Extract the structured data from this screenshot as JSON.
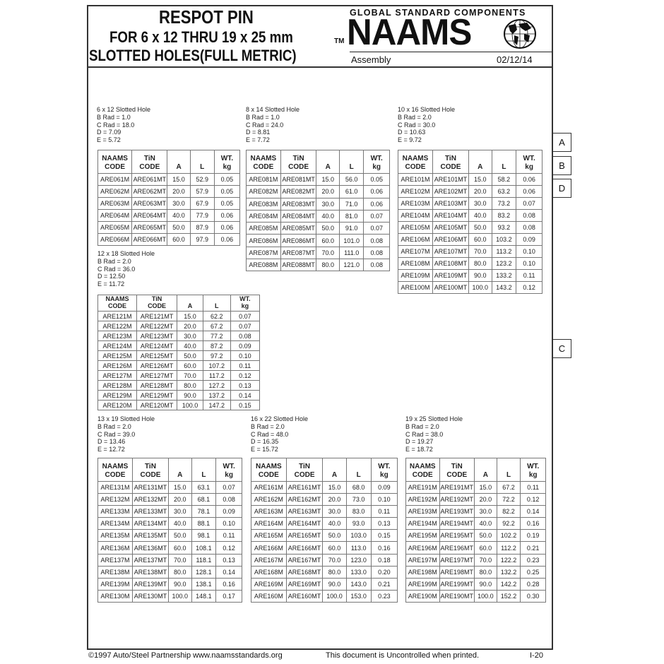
{
  "header": {
    "title_line1": "RESPOT PIN",
    "title_line2": "FOR 6 x 12 THRU 19 x 25 mm",
    "title_line3": "SLOTTED HOLES(FULL METRIC)",
    "tm": "TM",
    "tagline": "GLOBAL STANDARD COMPONENTS",
    "logo_text": "NAAMS",
    "category": "Assembly",
    "date": "02/12/14"
  },
  "columns": [
    "NAAMS CODE",
    "TiN CODE",
    "A",
    "L",
    "WT. kg"
  ],
  "groups": [
    {
      "title": "6 x 12 Slotted Hole",
      "b_rad": "B Rad = 1.0",
      "c_rad": "C Rad = 18.0",
      "d": "D = 7.09",
      "e": "E = 5.72",
      "rows": [
        [
          "ARE061M",
          "ARE061MT",
          "15.0",
          "52.9",
          "0.05"
        ],
        [
          "ARE062M",
          "ARE062MT",
          "20.0",
          "57.9",
          "0.05"
        ],
        [
          "ARE063M",
          "ARE063MT",
          "30.0",
          "67.9",
          "0.05"
        ],
        [
          "ARE064M",
          "ARE064MT",
          "40.0",
          "77.9",
          "0.06"
        ],
        [
          "ARE065M",
          "ARE065MT",
          "50.0",
          "87.9",
          "0.06"
        ],
        [
          "ARE066M",
          "ARE066MT",
          "60.0",
          "97.9",
          "0.06"
        ]
      ]
    },
    {
      "title": "8 x 14 Slotted Hole",
      "b_rad": "B Rad = 1.0",
      "c_rad": "C Rad = 24.0",
      "d": "D = 8.81",
      "e": "E = 7.72",
      "rows": [
        [
          "ARE081M",
          "ARE081MT",
          "15.0",
          "56.0",
          "0.05"
        ],
        [
          "ARE082M",
          "ARE082MT",
          "20.0",
          "61.0",
          "0.06"
        ],
        [
          "ARE083M",
          "ARE083MT",
          "30.0",
          "71.0",
          "0.06"
        ],
        [
          "ARE084M",
          "ARE084MT",
          "40.0",
          "81.0",
          "0.07"
        ],
        [
          "ARE085M",
          "ARE085MT",
          "50.0",
          "91.0",
          "0.07"
        ],
        [
          "ARE086M",
          "ARE086MT",
          "60.0",
          "101.0",
          "0.08"
        ],
        [
          "ARE087M",
          "ARE087MT",
          "70.0",
          "111.0",
          "0.08"
        ],
        [
          "ARE088M",
          "ARE088MT",
          "80.0",
          "121.0",
          "0.08"
        ]
      ]
    },
    {
      "title": "10 x 16 Slotted Hole",
      "b_rad": "B Rad = 2.0",
      "c_rad": "C Rad = 30.0",
      "d": "D = 10.63",
      "e": "E = 9.72",
      "rows": [
        [
          "ARE101M",
          "ARE101MT",
          "15.0",
          "58.2",
          "0.06"
        ],
        [
          "ARE102M",
          "ARE102MT",
          "20.0",
          "63.2",
          "0.06"
        ],
        [
          "ARE103M",
          "ARE103MT",
          "30.0",
          "73.2",
          "0.07"
        ],
        [
          "ARE104M",
          "ARE104MT",
          "40.0",
          "83.2",
          "0.08"
        ],
        [
          "ARE105M",
          "ARE105MT",
          "50.0",
          "93.2",
          "0.08"
        ],
        [
          "ARE106M",
          "ARE106MT",
          "60.0",
          "103.2",
          "0.09"
        ],
        [
          "ARE107M",
          "ARE107MT",
          "70.0",
          "113.2",
          "0.10"
        ],
        [
          "ARE108M",
          "ARE108MT",
          "80.0",
          "123.2",
          "0.10"
        ],
        [
          "ARE109M",
          "ARE109MT",
          "90.0",
          "133.2",
          "0.11"
        ],
        [
          "ARE100M",
          "ARE100MT",
          "100.0",
          "143.2",
          "0.12"
        ]
      ]
    },
    {
      "title": "12 x 18 Slotted Hole",
      "b_rad": "B Rad = 2.0",
      "c_rad": "C Rad = 36.0",
      "d": "D = 12.50",
      "e": "E = 11.72",
      "rows": [
        [
          "ARE121M",
          "ARE121MT",
          "15.0",
          "62.2",
          "0.07"
        ],
        [
          "ARE122M",
          "ARE122MT",
          "20.0",
          "67.2",
          "0.07"
        ],
        [
          "ARE123M",
          "ARE123MT",
          "30.0",
          "77.2",
          "0.08"
        ],
        [
          "ARE124M",
          "ARE124MT",
          "40.0",
          "87.2",
          "0.09"
        ],
        [
          "ARE125M",
          "ARE125MT",
          "50.0",
          "97.2",
          "0.10"
        ],
        [
          "ARE126M",
          "ARE126MT",
          "60.0",
          "107.2",
          "0.11"
        ],
        [
          "ARE127M",
          "ARE127MT",
          "70.0",
          "117.2",
          "0.12"
        ],
        [
          "ARE128M",
          "ARE128MT",
          "80.0",
          "127.2",
          "0.13"
        ],
        [
          "ARE129M",
          "ARE129MT",
          "90.0",
          "137.2",
          "0.14"
        ],
        [
          "ARE120M",
          "ARE120MT",
          "100.0",
          "147.2",
          "0.15"
        ]
      ]
    },
    {
      "title": "13 x 19 Slotted Hole",
      "b_rad": "B Rad = 2.0",
      "c_rad": "C Rad = 39.0",
      "d": "D = 13.46",
      "e": "E = 12.72",
      "rows": [
        [
          "ARE131M",
          "ARE131MT",
          "15.0",
          "63.1",
          "0.07"
        ],
        [
          "ARE132M",
          "ARE132MT",
          "20.0",
          "68.1",
          "0.08"
        ],
        [
          "ARE133M",
          "ARE133MT",
          "30.0",
          "78.1",
          "0.09"
        ],
        [
          "ARE134M",
          "ARE134MT",
          "40.0",
          "88.1",
          "0.10"
        ],
        [
          "ARE135M",
          "ARE135MT",
          "50.0",
          "98.1",
          "0.11"
        ],
        [
          "ARE136M",
          "ARE136MT",
          "60.0",
          "108.1",
          "0.12"
        ],
        [
          "ARE137M",
          "ARE137MT",
          "70.0",
          "118.1",
          "0.13"
        ],
        [
          "ARE138M",
          "ARE138MT",
          "80.0",
          "128.1",
          "0.14"
        ],
        [
          "ARE139M",
          "ARE139MT",
          "90.0",
          "138.1",
          "0.16"
        ],
        [
          "ARE130M",
          "ARE130MT",
          "100.0",
          "148.1",
          "0.17"
        ]
      ]
    },
    {
      "title": "16 x 22 Slotted Hole",
      "b_rad": "B Rad = 2.0",
      "c_rad": "C Rad = 48.0",
      "d": "D = 16.35",
      "e": "E = 15.72",
      "rows": [
        [
          "ARE161M",
          "ARE161MT",
          "15.0",
          "68.0",
          "0.09"
        ],
        [
          "ARE162M",
          "ARE162MT",
          "20.0",
          "73.0",
          "0.10"
        ],
        [
          "ARE163M",
          "ARE163MT",
          "30.0",
          "83.0",
          "0.11"
        ],
        [
          "ARE164M",
          "ARE164MT",
          "40.0",
          "93.0",
          "0.13"
        ],
        [
          "ARE165M",
          "ARE165MT",
          "50.0",
          "103.0",
          "0.15"
        ],
        [
          "ARE166M",
          "ARE166MT",
          "60.0",
          "113.0",
          "0.16"
        ],
        [
          "ARE167M",
          "ARE167MT",
          "70.0",
          "123.0",
          "0.18"
        ],
        [
          "ARE168M",
          "ARE168MT",
          "80.0",
          "133.0",
          "0.20"
        ],
        [
          "ARE169M",
          "ARE169MT",
          "90.0",
          "143.0",
          "0.21"
        ],
        [
          "ARE160M",
          "ARE160MT",
          "100.0",
          "153.0",
          "0.23"
        ]
      ]
    },
    {
      "title": "19 x 25 Slotted Hole",
      "b_rad": "B Rad = 2.0",
      "c_rad": "C Rad = 38.0",
      "d": "D = 19.27",
      "e": "E = 18.72",
      "rows": [
        [
          "ARE191M",
          "ARE191MT",
          "15.0",
          "67.2",
          "0.11"
        ],
        [
          "ARE192M",
          "ARE192MT",
          "20.0",
          "72.2",
          "0.12"
        ],
        [
          "ARE193M",
          "ARE193MT",
          "30.0",
          "82.2",
          "0.14"
        ],
        [
          "ARE194M",
          "ARE194MT",
          "40.0",
          "92.2",
          "0.16"
        ],
        [
          "ARE195M",
          "ARE195MT",
          "50.0",
          "102.2",
          "0.19"
        ],
        [
          "ARE196M",
          "ARE196MT",
          "60.0",
          "112.2",
          "0.21"
        ],
        [
          "ARE197M",
          "ARE197MT",
          "70.0",
          "122.2",
          "0.23"
        ],
        [
          "ARE198M",
          "ARE198MT",
          "80.0",
          "132.2",
          "0.25"
        ],
        [
          "ARE199M",
          "ARE199MT",
          "90.0",
          "142.2",
          "0.28"
        ],
        [
          "ARE190M",
          "ARE190MT",
          "100.0",
          "152.2",
          "0.30"
        ]
      ]
    }
  ],
  "side_tabs": [
    "A",
    "B",
    "D",
    "C"
  ],
  "footer": {
    "copyright": "©1997 Auto/Steel Partnership   www.naamsstandards.org",
    "notice": "This document is Uncontrolled when printed.",
    "page": "I-20"
  }
}
